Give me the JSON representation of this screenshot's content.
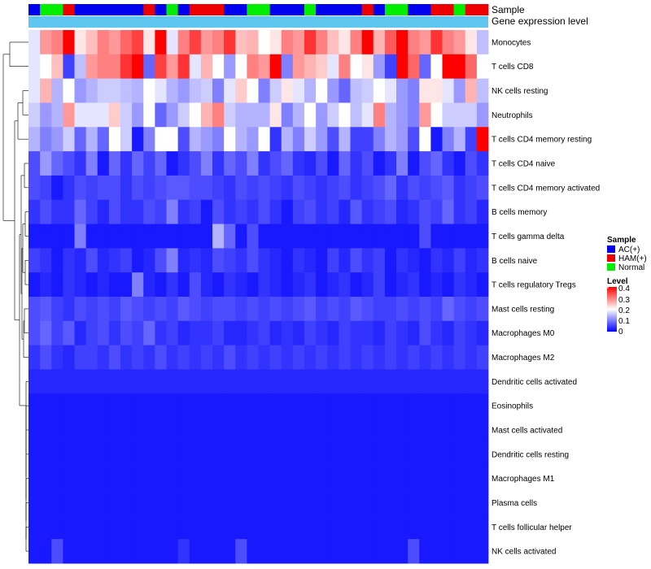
{
  "chart_data": {
    "type": "heatmap",
    "title": "",
    "columns": 40,
    "annotations": [
      {
        "name": "Sample"
      },
      {
        "name": "Gene expression level"
      }
    ],
    "sample_legend": {
      "title": "Sample",
      "items": [
        {
          "label": "AC(+)",
          "color": "#0000ee"
        },
        {
          "label": "HAM(+)",
          "color": "#ee0000"
        },
        {
          "label": "Normal",
          "color": "#00ee00"
        }
      ]
    },
    "level_legend": {
      "title": "Level",
      "ticks": [
        "0.4",
        "0.3",
        "0.2",
        "0.1",
        "0"
      ],
      "range": [
        0,
        0.4
      ]
    },
    "sample_groups": [
      "A",
      "N",
      "N",
      "H",
      "A",
      "A",
      "A",
      "A",
      "A",
      "A",
      "H",
      "A",
      "N",
      "A",
      "H",
      "H",
      "H",
      "A",
      "A",
      "N",
      "N",
      "A",
      "A",
      "A",
      "N",
      "A",
      "A",
      "A",
      "A",
      "H",
      "A",
      "N",
      "N",
      "A",
      "A",
      "H",
      "H",
      "N",
      "H",
      "H"
    ],
    "gene_expression_color": "#5fc6f0",
    "rows": [
      {
        "label": "Monocytes",
        "values": [
          0.18,
          0.28,
          0.3,
          0.4,
          0.22,
          0.25,
          0.3,
          0.28,
          0.32,
          0.35,
          0.22,
          0.4,
          0.18,
          0.3,
          0.35,
          0.28,
          0.3,
          0.36,
          0.25,
          0.26,
          0.2,
          0.22,
          0.3,
          0.28,
          0.36,
          0.3,
          0.25,
          0.22,
          0.3,
          0.4,
          0.26,
          0.33,
          0.4,
          0.3,
          0.28,
          0.36,
          0.3,
          0.28,
          0.22,
          0.15
        ]
      },
      {
        "label": "T cells CD8",
        "values": [
          0.18,
          0.2,
          0.25,
          0.05,
          0.15,
          0.28,
          0.3,
          0.3,
          0.36,
          0.4,
          0.08,
          0.35,
          0.28,
          0.36,
          0.18,
          0.26,
          0.2,
          0.12,
          0.2,
          0.3,
          0.28,
          0.4,
          0.1,
          0.28,
          0.26,
          0.24,
          0.18,
          0.3,
          0.2,
          0.22,
          0.12,
          0.05,
          0.4,
          0.32,
          0.08,
          0.2,
          0.4,
          0.4,
          0.32,
          0.2
        ]
      },
      {
        "label": "NK cells resting",
        "values": [
          0.18,
          0.26,
          0.14,
          0.2,
          0.12,
          0.14,
          0.16,
          0.16,
          0.15,
          0.14,
          0.2,
          0.18,
          0.14,
          0.12,
          0.15,
          0.16,
          0.1,
          0.18,
          0.24,
          0.2,
          0.1,
          0.16,
          0.22,
          0.18,
          0.14,
          0.2,
          0.12,
          0.08,
          0.15,
          0.16,
          0.2,
          0.18,
          0.12,
          0.1,
          0.22,
          0.22,
          0.18,
          0.12,
          0.26,
          0.15
        ]
      },
      {
        "label": "Neutrophils",
        "values": [
          0.16,
          0.12,
          0.14,
          0.28,
          0.18,
          0.18,
          0.18,
          0.24,
          0.16,
          0.12,
          0.2,
          0.08,
          0.12,
          0.16,
          0.2,
          0.26,
          0.3,
          0.16,
          0.14,
          0.14,
          0.14,
          0.22,
          0.1,
          0.14,
          0.2,
          0.12,
          0.16,
          0.2,
          0.15,
          0.18,
          0.3,
          0.14,
          0.12,
          0.1,
          0.28,
          0.2,
          0.16,
          0.16,
          0.16,
          0.12
        ]
      },
      {
        "label": "T cells CD4 memory resting",
        "values": [
          0.14,
          0.1,
          0.12,
          0.16,
          0.08,
          0.14,
          0.08,
          0.2,
          0.16,
          0.02,
          0.1,
          0.2,
          0.2,
          0.06,
          0.14,
          0.12,
          0.1,
          0.2,
          0.14,
          0.12,
          0.2,
          0.04,
          0.14,
          0.1,
          0.16,
          0.12,
          0.06,
          0.14,
          0.05,
          0.05,
          0.1,
          0.14,
          0.12,
          0.06,
          0.2,
          0.02,
          0.1,
          0.14,
          0.05,
          0.4
        ]
      },
      {
        "label": "T cells CD4 naive",
        "values": [
          0.06,
          0.12,
          0.08,
          0.06,
          0.04,
          0.1,
          0.02,
          0.08,
          0.04,
          0.08,
          0.05,
          0.08,
          0.02,
          0.04,
          0.06,
          0.1,
          0.04,
          0.08,
          0.06,
          0.1,
          0.04,
          0.06,
          0.08,
          0.04,
          0.03,
          0.06,
          0.02,
          0.08,
          0.04,
          0.06,
          0.02,
          0.04,
          0.1,
          0.02,
          0.06,
          0.08,
          0.04,
          0.02,
          0.06,
          0.04
        ]
      },
      {
        "label": "T cells CD4 memory activated",
        "values": [
          0.06,
          0.05,
          0.02,
          0.04,
          0.06,
          0.05,
          0.06,
          0.06,
          0.04,
          0.06,
          0.05,
          0.06,
          0.07,
          0.07,
          0.06,
          0.06,
          0.05,
          0.04,
          0.06,
          0.05,
          0.06,
          0.05,
          0.04,
          0.06,
          0.05,
          0.04,
          0.05,
          0.06,
          0.04,
          0.05,
          0.06,
          0.08,
          0.04,
          0.06,
          0.05,
          0.06,
          0.07,
          0.04,
          0.05,
          0.06
        ]
      },
      {
        "label": "B cells memory",
        "values": [
          0.04,
          0.06,
          0.04,
          0.04,
          0.08,
          0.05,
          0.03,
          0.06,
          0.04,
          0.04,
          0.06,
          0.05,
          0.1,
          0.04,
          0.05,
          0.02,
          0.06,
          0.04,
          0.05,
          0.04,
          0.06,
          0.04,
          0.02,
          0.05,
          0.06,
          0.04,
          0.05,
          0.03,
          0.07,
          0.04,
          0.05,
          0.06,
          0.03,
          0.04,
          0.06,
          0.05,
          0.08,
          0.04,
          0.05,
          0.03
        ]
      },
      {
        "label": "T cells gamma delta",
        "values": [
          0.02,
          0.02,
          0.02,
          0.02,
          0.1,
          0.02,
          0.02,
          0.02,
          0.02,
          0.02,
          0.02,
          0.02,
          0.02,
          0.02,
          0.02,
          0.02,
          0.14,
          0.08,
          0.02,
          0.06,
          0.02,
          0.02,
          0.02,
          0.02,
          0.02,
          0.02,
          0.02,
          0.02,
          0.02,
          0.02,
          0.02,
          0.02,
          0.02,
          0.02,
          0.06,
          0.02,
          0.02,
          0.02,
          0.02,
          0.02
        ]
      },
      {
        "label": "B cells naive",
        "values": [
          0.05,
          0.04,
          0.02,
          0.04,
          0.03,
          0.06,
          0.03,
          0.04,
          0.05,
          0.02,
          0.03,
          0.06,
          0.1,
          0.03,
          0.04,
          0.03,
          0.06,
          0.05,
          0.04,
          0.06,
          0.04,
          0.03,
          0.02,
          0.04,
          0.03,
          0.02,
          0.05,
          0.03,
          0.06,
          0.04,
          0.05,
          0.02,
          0.04,
          0.03,
          0.02,
          0.04,
          0.03,
          0.05,
          0.03,
          0.04
        ]
      },
      {
        "label": "T cells regulatory  Tregs",
        "values": [
          0.02,
          0.03,
          0.02,
          0.04,
          0.03,
          0.02,
          0.03,
          0.02,
          0.02,
          0.1,
          0.03,
          0.02,
          0.04,
          0.02,
          0.06,
          0.03,
          0.02,
          0.04,
          0.03,
          0.02,
          0.04,
          0.03,
          0.02,
          0.03,
          0.04,
          0.02,
          0.03,
          0.04,
          0.02,
          0.03,
          0.05,
          0.02,
          0.03,
          0.04,
          0.02,
          0.03,
          0.02,
          0.04,
          0.03,
          0.02
        ]
      },
      {
        "label": "Mast cells resting",
        "values": [
          0.06,
          0.07,
          0.05,
          0.04,
          0.06,
          0.05,
          0.06,
          0.05,
          0.07,
          0.06,
          0.05,
          0.06,
          0.05,
          0.07,
          0.06,
          0.05,
          0.06,
          0.06,
          0.05,
          0.06,
          0.05,
          0.06,
          0.05,
          0.06,
          0.07,
          0.05,
          0.06,
          0.05,
          0.07,
          0.06,
          0.05,
          0.05,
          0.06,
          0.05,
          0.06,
          0.05,
          0.08,
          0.06,
          0.05,
          0.06
        ]
      },
      {
        "label": "Macrophages M0",
        "values": [
          0.06,
          0.08,
          0.05,
          0.07,
          0.03,
          0.05,
          0.06,
          0.04,
          0.06,
          0.05,
          0.08,
          0.04,
          0.05,
          0.03,
          0.04,
          0.04,
          0.05,
          0.03,
          0.03,
          0.04,
          0.05,
          0.03,
          0.04,
          0.03,
          0.05,
          0.04,
          0.03,
          0.05,
          0.04,
          0.04,
          0.03,
          0.05,
          0.04,
          0.03,
          0.06,
          0.04,
          0.03,
          0.05,
          0.04,
          0.03
        ]
      },
      {
        "label": "Macrophages M2",
        "values": [
          0.04,
          0.06,
          0.04,
          0.03,
          0.05,
          0.05,
          0.04,
          0.06,
          0.04,
          0.05,
          0.04,
          0.06,
          0.04,
          0.05,
          0.04,
          0.05,
          0.04,
          0.06,
          0.04,
          0.05,
          0.04,
          0.05,
          0.04,
          0.05,
          0.04,
          0.05,
          0.04,
          0.05,
          0.04,
          0.05,
          0.04,
          0.05,
          0.04,
          0.05,
          0.04,
          0.05,
          0.04,
          0.05,
          0.04,
          0.05
        ]
      },
      {
        "label": "Dendritic cells activated",
        "values": [
          0.03,
          0.03,
          0.03,
          0.03,
          0.03,
          0.03,
          0.03,
          0.03,
          0.03,
          0.03,
          0.03,
          0.03,
          0.03,
          0.03,
          0.03,
          0.03,
          0.03,
          0.03,
          0.03,
          0.03,
          0.03,
          0.03,
          0.03,
          0.03,
          0.03,
          0.03,
          0.03,
          0.03,
          0.03,
          0.03,
          0.03,
          0.03,
          0.03,
          0.03,
          0.03,
          0.03,
          0.03,
          0.03,
          0.03,
          0.03
        ]
      },
      {
        "label": "Eosinophils",
        "values": [
          0.02,
          0.02,
          0.02,
          0.02,
          0.02,
          0.02,
          0.02,
          0.02,
          0.02,
          0.02,
          0.02,
          0.02,
          0.02,
          0.02,
          0.02,
          0.02,
          0.02,
          0.02,
          0.02,
          0.02,
          0.02,
          0.02,
          0.02,
          0.02,
          0.02,
          0.02,
          0.02,
          0.02,
          0.02,
          0.02,
          0.02,
          0.02,
          0.02,
          0.02,
          0.02,
          0.02,
          0.02,
          0.02,
          0.02,
          0.02
        ]
      },
      {
        "label": "Mast cells activated",
        "values": [
          0.02,
          0.02,
          0.02,
          0.02,
          0.02,
          0.02,
          0.02,
          0.02,
          0.02,
          0.02,
          0.02,
          0.02,
          0.02,
          0.02,
          0.02,
          0.02,
          0.02,
          0.02,
          0.02,
          0.02,
          0.02,
          0.02,
          0.02,
          0.02,
          0.02,
          0.02,
          0.02,
          0.02,
          0.02,
          0.02,
          0.02,
          0.02,
          0.02,
          0.02,
          0.02,
          0.02,
          0.02,
          0.02,
          0.02,
          0.02
        ]
      },
      {
        "label": "Dendritic cells resting",
        "values": [
          0.02,
          0.02,
          0.02,
          0.02,
          0.02,
          0.02,
          0.02,
          0.02,
          0.02,
          0.02,
          0.02,
          0.02,
          0.02,
          0.02,
          0.02,
          0.02,
          0.02,
          0.02,
          0.02,
          0.02,
          0.02,
          0.02,
          0.02,
          0.02,
          0.02,
          0.02,
          0.02,
          0.02,
          0.02,
          0.02,
          0.02,
          0.02,
          0.02,
          0.02,
          0.02,
          0.02,
          0.02,
          0.02,
          0.02,
          0.02
        ]
      },
      {
        "label": "Macrophages M1",
        "values": [
          0.02,
          0.02,
          0.02,
          0.02,
          0.02,
          0.02,
          0.02,
          0.02,
          0.02,
          0.02,
          0.02,
          0.02,
          0.02,
          0.02,
          0.02,
          0.02,
          0.02,
          0.02,
          0.02,
          0.02,
          0.02,
          0.02,
          0.02,
          0.02,
          0.02,
          0.02,
          0.02,
          0.02,
          0.02,
          0.02,
          0.02,
          0.02,
          0.02,
          0.02,
          0.02,
          0.02,
          0.02,
          0.02,
          0.02,
          0.02
        ]
      },
      {
        "label": "Plasma cells",
        "values": [
          0.02,
          0.02,
          0.02,
          0.02,
          0.02,
          0.02,
          0.02,
          0.02,
          0.02,
          0.02,
          0.02,
          0.02,
          0.02,
          0.02,
          0.02,
          0.02,
          0.02,
          0.02,
          0.02,
          0.02,
          0.02,
          0.02,
          0.02,
          0.02,
          0.02,
          0.02,
          0.02,
          0.02,
          0.02,
          0.02,
          0.02,
          0.02,
          0.02,
          0.02,
          0.02,
          0.02,
          0.02,
          0.02,
          0.02,
          0.02
        ]
      },
      {
        "label": "T cells follicular helper",
        "values": [
          0.02,
          0.02,
          0.02,
          0.02,
          0.02,
          0.02,
          0.02,
          0.02,
          0.02,
          0.02,
          0.02,
          0.02,
          0.02,
          0.02,
          0.02,
          0.02,
          0.02,
          0.02,
          0.02,
          0.02,
          0.02,
          0.02,
          0.02,
          0.02,
          0.02,
          0.02,
          0.02,
          0.02,
          0.02,
          0.02,
          0.02,
          0.02,
          0.02,
          0.02,
          0.02,
          0.02,
          0.02,
          0.02,
          0.02,
          0.02
        ]
      },
      {
        "label": "NK cells activated",
        "values": [
          0.02,
          0.02,
          0.06,
          0.02,
          0.02,
          0.02,
          0.02,
          0.02,
          0.02,
          0.02,
          0.02,
          0.02,
          0.02,
          0.04,
          0.02,
          0.02,
          0.02,
          0.02,
          0.06,
          0.02,
          0.02,
          0.02,
          0.02,
          0.02,
          0.02,
          0.02,
          0.02,
          0.02,
          0.02,
          0.02,
          0.02,
          0.02,
          0.02,
          0.06,
          0.02,
          0.02,
          0.02,
          0.02,
          0.02,
          0.02
        ]
      }
    ]
  }
}
